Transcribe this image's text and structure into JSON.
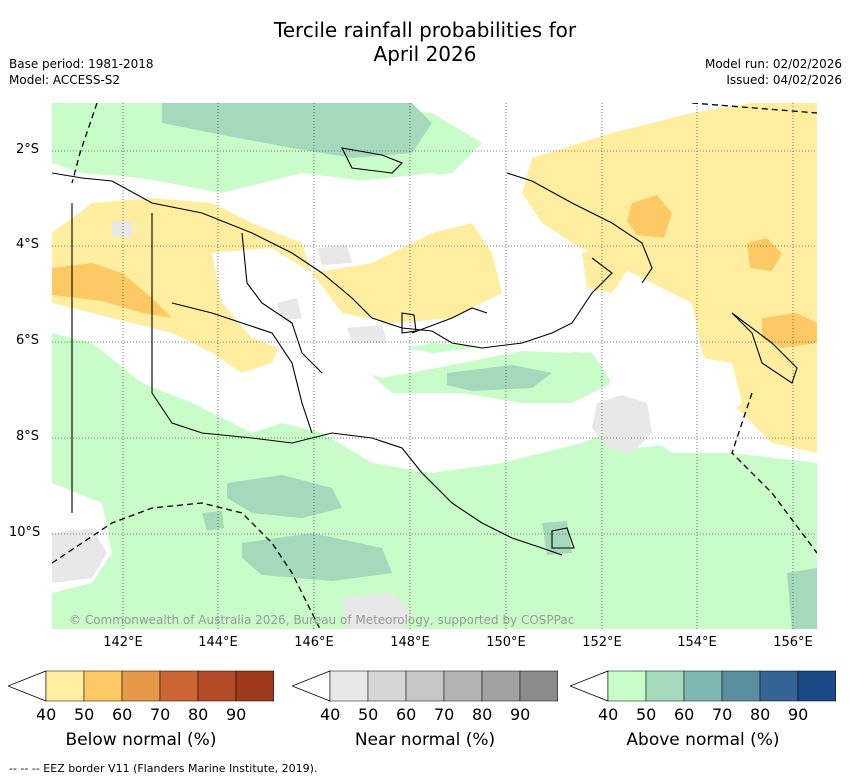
{
  "title_line1": "Tercile rainfall probabilities for",
  "title_line2": "April 2026",
  "base_period": "Base period: 1981-2018",
  "model": "Model: ACCESS-S2",
  "model_run": "Model run: 02/02/2026",
  "issued": "Issued: 04/02/2026",
  "lat_labels": [
    "2°S",
    "4°S",
    "6°S",
    "8°S",
    "10°S"
  ],
  "lon_labels": [
    "142°E",
    "144°E",
    "146°E",
    "148°E",
    "150°E",
    "152°E",
    "154°E",
    "156°E"
  ],
  "copyright": "© Commonwealth of Australia 2026, Bureau of Meteorology, supported by COSPPac",
  "colorbars": [
    {
      "label": "Below normal (%)",
      "ticks": [
        "40",
        "50",
        "60",
        "70",
        "80",
        "90"
      ],
      "colors": [
        "#ffeea0",
        "#fdc964",
        "#e49848",
        "#cc6531",
        "#b44a27",
        "#a03a1f"
      ],
      "arrow": "#8c2e18"
    },
    {
      "label": "Near normal (%)",
      "ticks": [
        "40",
        "50",
        "60",
        "70",
        "80",
        "90"
      ],
      "colors": [
        "#e8e8e8",
        "#d6d6d6",
        "#c6c6c6",
        "#b3b3b3",
        "#a1a1a1",
        "#8c8c8c"
      ],
      "arrow": "#7a7a7a"
    },
    {
      "label": "Above normal (%)",
      "ticks": [
        "40",
        "50",
        "60",
        "70",
        "80",
        "90"
      ],
      "colors": [
        "#c8fcc8",
        "#a4d9bc",
        "#80b7b0",
        "#5b8fa0",
        "#346394",
        "#1b4a86"
      ],
      "arrow": "#143c72"
    }
  ],
  "footer": "-- -- -- EEZ border V11 (Flanders Marine Institute, 2019)."
}
